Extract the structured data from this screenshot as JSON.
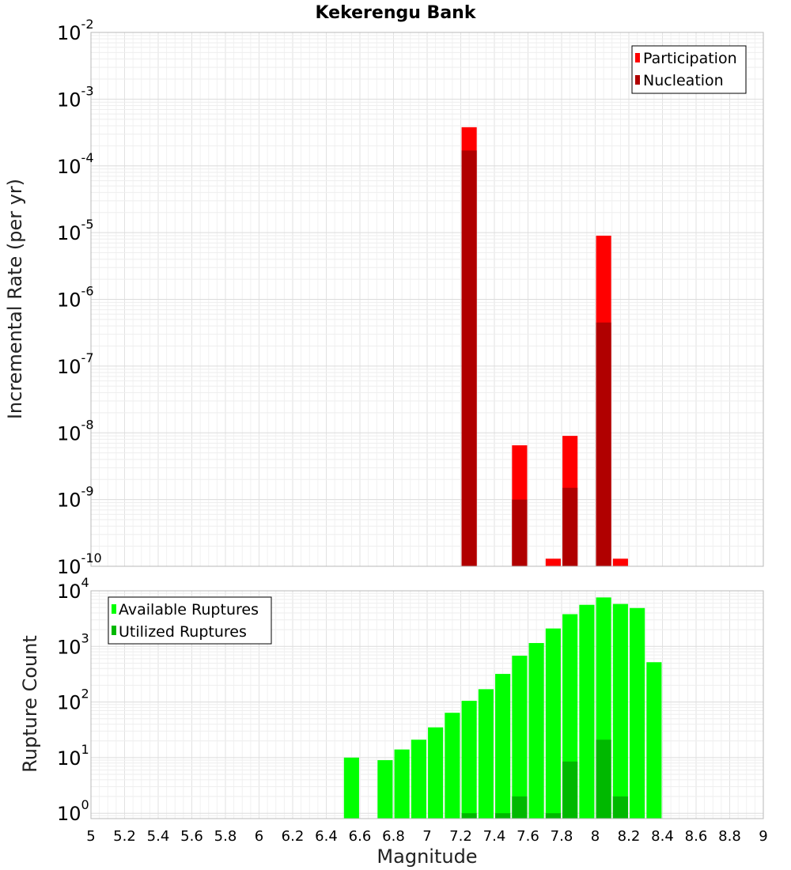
{
  "chart_data": {
    "type": "bar",
    "title": "Kekerengu Bank",
    "xlabel": "Magnitude",
    "xlim": [
      5,
      9
    ],
    "xticks": [
      "5",
      "5.2",
      "5.4",
      "5.6",
      "5.8",
      "6",
      "6.2",
      "6.4",
      "6.6",
      "6.8",
      "7",
      "7.2",
      "7.4",
      "7.6",
      "7.8",
      "8",
      "8.2",
      "8.4",
      "8.6",
      "8.8",
      "9"
    ],
    "grid": true,
    "panels": [
      {
        "ylabel": "Incremental Rate (per yr)",
        "yscale": "log",
        "ylim": [
          1e-10,
          0.01
        ],
        "yticks": [
          {
            "base": "10",
            "exp": "-10"
          },
          {
            "base": "10",
            "exp": "-9"
          },
          {
            "base": "10",
            "exp": "-8"
          },
          {
            "base": "10",
            "exp": "-7"
          },
          {
            "base": "10",
            "exp": "-6"
          },
          {
            "base": "10",
            "exp": "-5"
          },
          {
            "base": "10",
            "exp": "-4"
          },
          {
            "base": "10",
            "exp": "-3"
          },
          {
            "base": "10",
            "exp": "-2"
          }
        ],
        "legend_position": "top-right",
        "series": [
          {
            "name": "Participation",
            "color": "#ff0000",
            "x": [
              7.25,
              7.55,
              7.75,
              7.85,
              8.05,
              8.15
            ],
            "values": [
              0.00038,
              6.5e-09,
              1.3e-10,
              9e-09,
              9e-06,
              1.3e-10
            ]
          },
          {
            "name": "Nucleation",
            "color": "#b00000",
            "x": [
              7.25,
              7.55,
              7.85,
              8.05
            ],
            "values": [
              0.00017,
              1e-09,
              1.5e-09,
              4.5e-07
            ]
          }
        ]
      },
      {
        "ylabel": "Rupture Count",
        "yscale": "log",
        "ylim": [
          0.8,
          10000.0
        ],
        "yticks": [
          {
            "base": "10",
            "exp": "0"
          },
          {
            "base": "10",
            "exp": "1"
          },
          {
            "base": "10",
            "exp": "2"
          },
          {
            "base": "10",
            "exp": "3"
          },
          {
            "base": "10",
            "exp": "4"
          }
        ],
        "legend_position": "top-left",
        "series": [
          {
            "name": "Available Ruptures",
            "color": "#00ff00",
            "x": [
              6.55,
              6.75,
              6.85,
              6.95,
              7.05,
              7.15,
              7.25,
              7.35,
              7.45,
              7.55,
              7.65,
              7.75,
              7.85,
              7.95,
              8.05,
              8.15,
              8.25,
              8.35
            ],
            "values": [
              10,
              9,
              14,
              21,
              35,
              64,
              105,
              170,
              320,
              680,
              1150,
              2100,
              3800,
              5600,
              7600,
              5800,
              4900,
              520
            ]
          },
          {
            "name": "Utilized Ruptures",
            "color": "#00b800",
            "x": [
              7.25,
              7.45,
              7.55,
              7.75,
              7.85,
              8.05,
              8.15
            ],
            "values": [
              1,
              1,
              2,
              1,
              8.5,
              21,
              2
            ]
          }
        ]
      }
    ]
  }
}
